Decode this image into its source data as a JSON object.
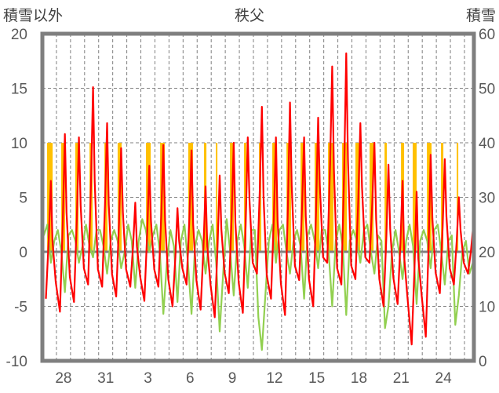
{
  "chart_data": {
    "type": "line",
    "title": "秩父",
    "ylabel_left": "積雪以外",
    "ylabel_right": "積雪",
    "ylim_left": [
      -10,
      20
    ],
    "ylim_right": [
      0,
      60
    ],
    "yticks_left": [
      "20",
      "15",
      "10",
      "5",
      "0",
      "-5",
      "-10"
    ],
    "yticks_right": [
      "60",
      "50",
      "40",
      "30",
      "20",
      "10",
      "0"
    ],
    "x_unit": "days since Dec 27 00:00",
    "xlim": [
      0,
      30.67
    ],
    "xtick_labels": [
      "28",
      "31",
      "3",
      "6",
      "9",
      "12",
      "15",
      "18",
      "21",
      "24"
    ],
    "xtick_positions": [
      1.5,
      4.5,
      7.5,
      10.5,
      13.5,
      16.5,
      19.5,
      22.5,
      25.5,
      28.5
    ],
    "grid": true,
    "colors": {
      "red": "#ff0000",
      "green": "#92d050",
      "orange": "#ffc000",
      "purple": "#7030a0",
      "frame": "#7f7f7f"
    },
    "series": [
      {
        "name": "red",
        "axis": "left",
        "daily_min": [
          -4.3,
          -5.5,
          -4.6,
          -3,
          -3.2,
          -4.1,
          -3.2,
          -4.5,
          -3.2,
          -5,
          -3,
          -5.3,
          -6,
          -3.8,
          -5.6,
          -2,
          -4.3,
          -5.8,
          -2.6,
          -5,
          -1,
          -3,
          -2.5,
          -1,
          -5,
          -4.8,
          -8.5,
          -7.8,
          -3.8,
          -3,
          -2
        ],
        "daily_max": [
          6.5,
          10.8,
          10.5,
          15.1,
          11.8,
          9.5,
          4.5,
          7.9,
          9.8,
          4,
          9.3,
          6,
          7,
          10,
          10.5,
          13.3,
          10.5,
          13.7,
          10.5,
          12.3,
          17,
          18.2,
          11.8,
          10,
          8,
          6.5,
          5.5,
          8.9,
          8.5,
          5,
          2
        ]
      },
      {
        "name": "green",
        "axis": "left",
        "step_days": 0.25,
        "values": [
          1.5,
          2.5,
          -1,
          1,
          2,
          0,
          -3.7,
          1.5,
          2,
          1,
          -1,
          0.5,
          2.5,
          0.5,
          -0.5,
          2,
          2,
          0.5,
          -2,
          1,
          2,
          1,
          -1.5,
          0,
          2.5,
          1,
          -3.3,
          1,
          3,
          2,
          0,
          1.5,
          2.5,
          0,
          -5.7,
          -1,
          2,
          0.5,
          -4.6,
          1,
          2.5,
          -1,
          -5.7,
          0.5,
          2,
          1,
          -2,
          1,
          2.5,
          -1,
          -7.3,
          -2,
          3,
          0,
          -4,
          1,
          2.5,
          0.5,
          -3.3,
          2,
          2,
          -6,
          -9,
          -4,
          1,
          2.5,
          -1,
          2,
          2.5,
          0,
          -2,
          1,
          2,
          0.5,
          -4.3,
          1.5,
          2.5,
          1,
          -1.5,
          2,
          2,
          0,
          -5,
          1,
          2.5,
          0.5,
          -5.8,
          1,
          2,
          1,
          -1,
          2,
          2.5,
          0,
          -2,
          1.5,
          1,
          -7,
          -5,
          0,
          2,
          0,
          -2.5,
          1,
          2.5,
          0.5,
          -4.8,
          1,
          2,
          1,
          -1.5,
          2,
          2.5,
          0,
          -3,
          1,
          1.5,
          -6.7,
          -4,
          0,
          1,
          -2,
          -1
        ]
      },
      {
        "name": "orange-bars",
        "axis": "right",
        "value": 40,
        "intervals": [
          [
            0.33,
            0.73
          ],
          [
            1.34,
            1.62
          ],
          [
            2.34,
            2.57
          ],
          [
            3.35,
            3.57
          ],
          [
            4.41,
            4.63
          ],
          [
            5.35,
            5.63
          ],
          [
            7.36,
            7.7
          ],
          [
            8.37,
            8.7
          ],
          [
            10.37,
            10.71
          ],
          [
            11.49,
            11.66
          ],
          [
            12.33,
            12.44
          ],
          [
            13.33,
            13.61
          ],
          [
            14.33,
            14.5
          ],
          [
            15.39,
            15.56
          ],
          [
            16.34,
            16.68
          ],
          [
            17.35,
            17.68
          ],
          [
            18.35,
            18.63
          ],
          [
            19.35,
            19.69
          ],
          [
            20.3,
            20.69
          ],
          [
            21.3,
            21.64
          ],
          [
            22.25,
            22.59
          ],
          [
            23.26,
            23.54
          ],
          [
            24.32,
            24.48
          ],
          [
            25.49,
            25.71
          ],
          [
            26.32,
            26.6
          ],
          [
            27.33,
            27.66
          ],
          [
            28.33,
            28.5
          ],
          [
            29.45,
            29.56
          ]
        ]
      },
      {
        "name": "snow-depth",
        "axis": "right",
        "value": 0
      }
    ]
  }
}
